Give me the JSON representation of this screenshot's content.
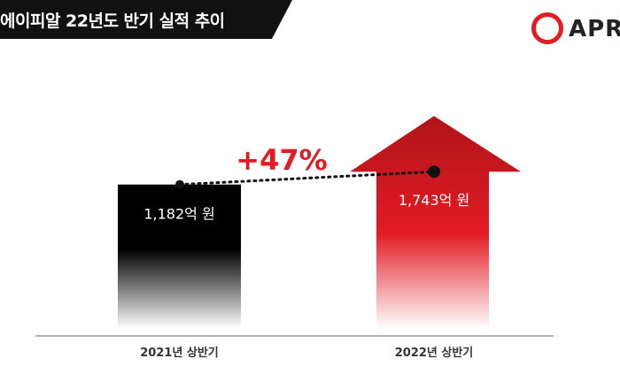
{
  "title": "에이피알 22년도 반기 실적 추이",
  "logo_text": "APR",
  "colors": {
    "accent": "#e31b23",
    "bar_2021": "#000000",
    "bar_2022": "#e31b23"
  },
  "chart_data": {
    "type": "bar",
    "categories": [
      "2021년 상반기",
      "2022년 상반기"
    ],
    "values": [
      1182,
      1743
    ],
    "value_labels": [
      "1,182억 원",
      "1,743억 원"
    ],
    "change_label": "+47%",
    "ylim": [
      0,
      2150
    ],
    "grid": false,
    "legend": "none"
  }
}
